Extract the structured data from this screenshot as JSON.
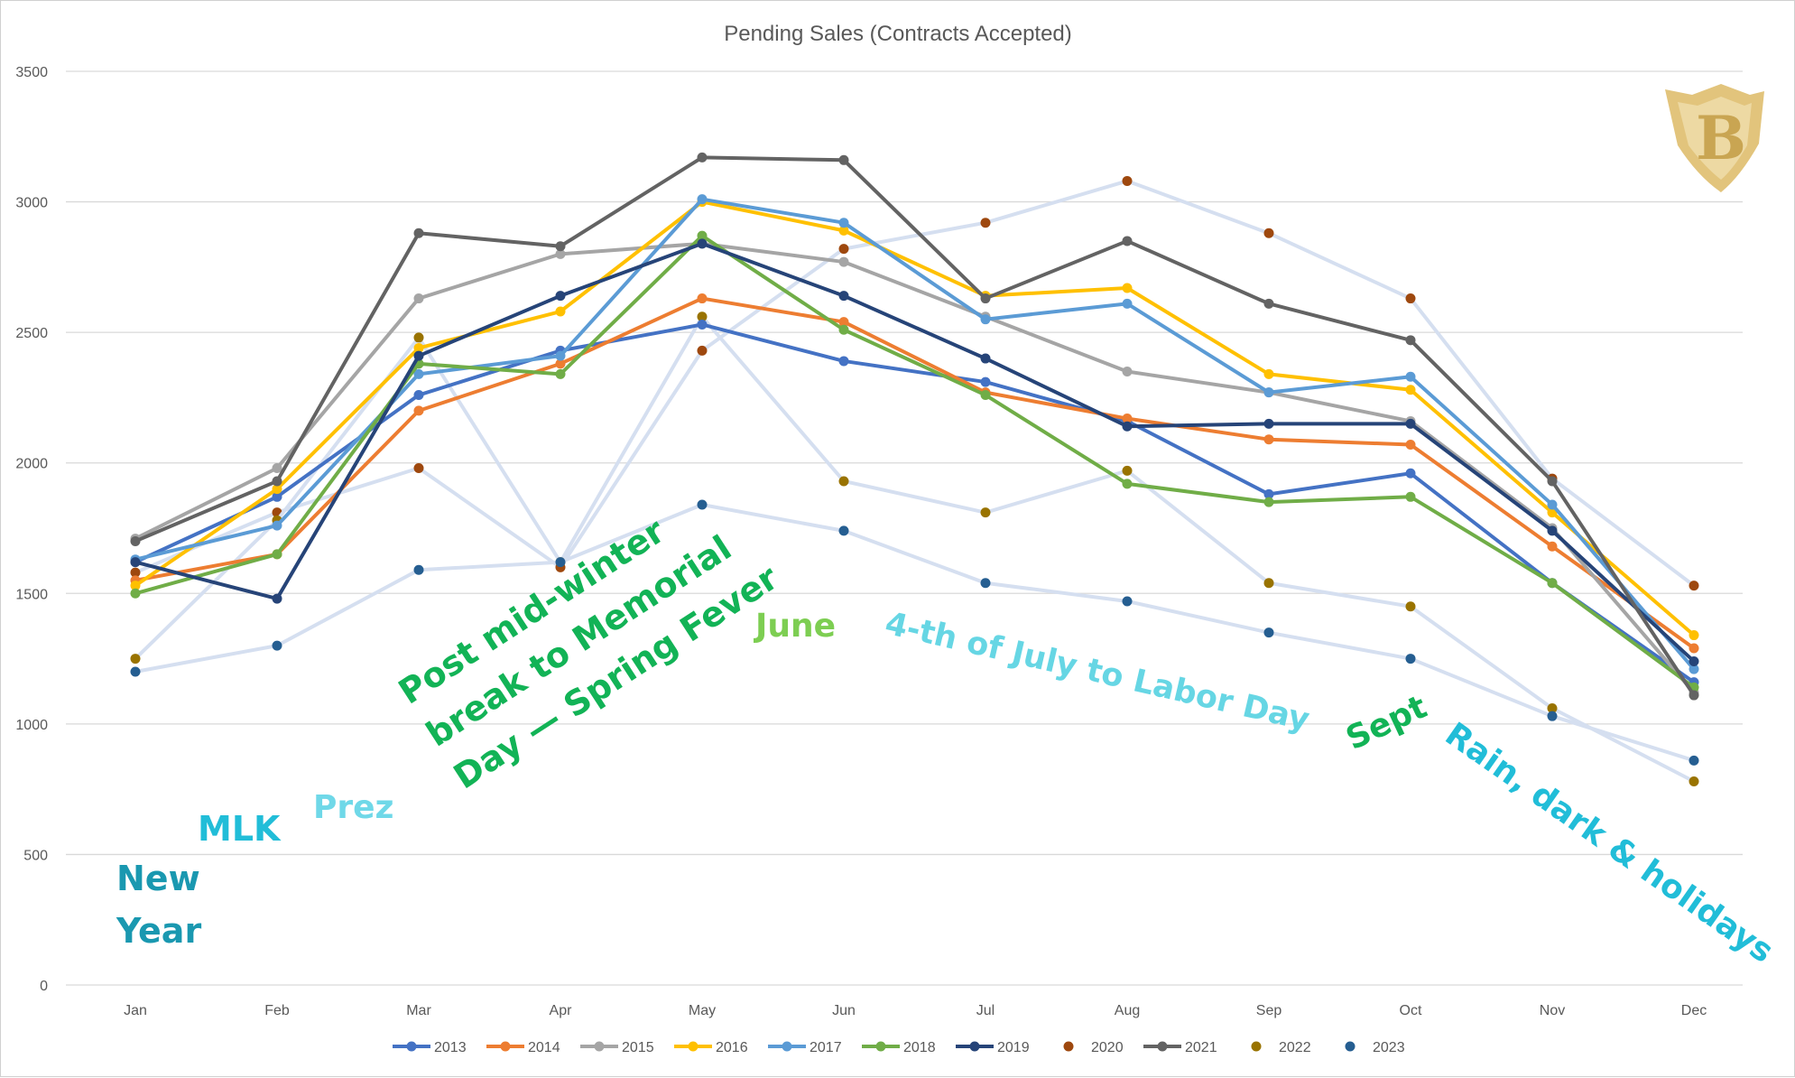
{
  "chart_data": {
    "type": "line",
    "title": "Pending Sales (Contracts Accepted)",
    "xlabel": "",
    "ylabel": "",
    "ylim": [
      0,
      3500
    ],
    "yticks": [
      0,
      500,
      1000,
      1500,
      2000,
      2500,
      3000,
      3500
    ],
    "grid": true,
    "legend_position": "bottom",
    "categories": [
      "Jan",
      "Feb",
      "Mar",
      "Apr",
      "May",
      "Jun",
      "Jul",
      "Aug",
      "Sep",
      "Oct",
      "Nov",
      "Dec"
    ],
    "series": [
      {
        "name": "2013",
        "color": "#4472c4",
        "style": "line",
        "values": [
          1620,
          1870,
          2260,
          2430,
          2530,
          2390,
          2310,
          2160,
          1880,
          1960,
          1540,
          1160
        ]
      },
      {
        "name": "2014",
        "color": "#ed7d31",
        "style": "line",
        "values": [
          1550,
          1650,
          2200,
          2380,
          2630,
          2540,
          2270,
          2170,
          2090,
          2070,
          1680,
          1290
        ]
      },
      {
        "name": "2015",
        "color": "#a5a5a5",
        "style": "line",
        "values": [
          1710,
          1980,
          2630,
          2800,
          2840,
          2770,
          2560,
          2350,
          2270,
          2160,
          1750,
          1120
        ]
      },
      {
        "name": "2016",
        "color": "#ffc000",
        "style": "line",
        "values": [
          1530,
          1900,
          2440,
          2580,
          3000,
          2890,
          2640,
          2670,
          2340,
          2280,
          1810,
          1340
        ]
      },
      {
        "name": "2017",
        "color": "#5b9bd5",
        "style": "line",
        "values": [
          1630,
          1760,
          2340,
          2410,
          3010,
          2920,
          2550,
          2610,
          2270,
          2330,
          1840,
          1210
        ]
      },
      {
        "name": "2018",
        "color": "#70ad47",
        "style": "line",
        "values": [
          1500,
          1650,
          2380,
          2340,
          2870,
          2510,
          2260,
          1920,
          1850,
          1870,
          1540,
          1140
        ]
      },
      {
        "name": "2019",
        "color": "#264478",
        "style": "line",
        "values": [
          1620,
          1480,
          2410,
          2640,
          2840,
          2640,
          2400,
          2140,
          2150,
          2150,
          1740,
          1240
        ]
      },
      {
        "name": "2020",
        "color": "#9e480e",
        "style": "marker",
        "values": [
          1580,
          1810,
          1980,
          1600,
          2430,
          2820,
          2920,
          3080,
          2880,
          2630,
          1940,
          1530
        ]
      },
      {
        "name": "2021",
        "color": "#636363",
        "style": "line",
        "values": [
          1700,
          1930,
          2880,
          2830,
          3170,
          3160,
          2630,
          2850,
          2610,
          2470,
          1930,
          1110
        ]
      },
      {
        "name": "2022",
        "color": "#997300",
        "style": "marker",
        "values": [
          1250,
          1780,
          2480,
          1620,
          2560,
          1930,
          1810,
          1970,
          1540,
          1450,
          1060,
          780
        ]
      },
      {
        "name": "2023",
        "color": "#255e91",
        "style": "marker",
        "values": [
          1200,
          1300,
          1590,
          1620,
          1840,
          1740,
          1540,
          1470,
          1350,
          1250,
          1030,
          860
        ]
      }
    ],
    "annotations": [
      {
        "lines": [
          "New",
          "Year"
        ],
        "color": "#1a98b0",
        "rotate": 0
      },
      {
        "lines": [
          "MLK"
        ],
        "color": "#21bdd8",
        "rotate": 0
      },
      {
        "lines": [
          "Prez"
        ],
        "color": "#6fd8e8",
        "rotate": 0
      },
      {
        "lines": [
          "Post mid-winter",
          "break to Memorial",
          "Day — Spring Fever"
        ],
        "color": "#12b356",
        "rotate": -33
      },
      {
        "lines": [
          "June"
        ],
        "color": "#7dce52",
        "rotate": 0
      },
      {
        "lines": [
          "4-th of July to Labor Day"
        ],
        "color": "#66d6e4",
        "rotate": 13
      },
      {
        "lines": [
          "Sept"
        ],
        "color": "#12b356",
        "rotate": -25
      },
      {
        "lines": [
          "Rain, dark & holidays"
        ],
        "color": "#21bdd8",
        "rotate": 35
      }
    ],
    "logo": {
      "letter": "B",
      "color": "#e2c47c"
    }
  }
}
